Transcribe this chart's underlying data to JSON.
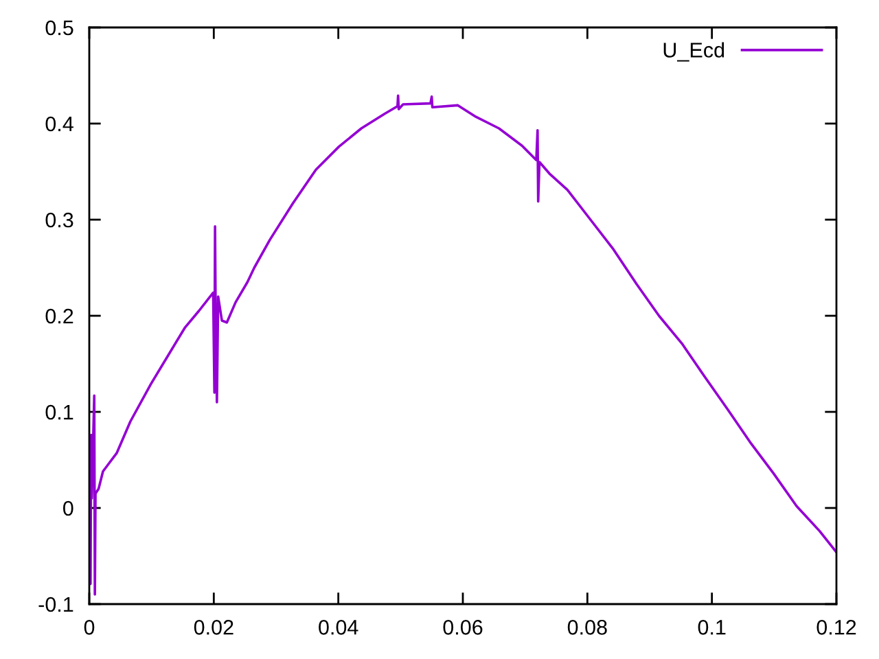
{
  "chart_data": {
    "type": "line",
    "xlim": [
      0,
      0.12
    ],
    "ylim": [
      -0.1,
      0.5
    ],
    "xticks": [
      0,
      0.02,
      0.04,
      0.06,
      0.08,
      0.1,
      0.12
    ],
    "yticks": [
      -0.1,
      0,
      0.1,
      0.2,
      0.3,
      0.4,
      0.5
    ],
    "legend": "top right",
    "grid": false,
    "series": [
      {
        "name": "U_Ecd",
        "color": "#9400d3",
        "x": [
          0.0,
          0.0002,
          0.0003,
          0.0004,
          0.0008,
          0.0009,
          0.001,
          0.0015,
          0.0022,
          0.003,
          0.0044,
          0.0066,
          0.0099,
          0.0125,
          0.0154,
          0.0176,
          0.0199,
          0.0201,
          0.0202,
          0.0203,
          0.0205,
          0.0207,
          0.0213,
          0.0221,
          0.0235,
          0.0254,
          0.0265,
          0.029,
          0.0327,
          0.0364,
          0.0401,
          0.0437,
          0.0474,
          0.0495,
          0.0496,
          0.0497,
          0.0504,
          0.0548,
          0.055,
          0.0551,
          0.0592,
          0.0621,
          0.0658,
          0.0695,
          0.0718,
          0.072,
          0.0721,
          0.0723,
          0.0739,
          0.0768,
          0.0805,
          0.0842,
          0.0879,
          0.0915,
          0.0952,
          0.0989,
          0.1026,
          0.1063,
          0.1099,
          0.1136,
          0.1173,
          0.12
        ],
        "values": [
          0.0,
          -0.079,
          0.076,
          0.01,
          0.117,
          -0.09,
          0.015,
          0.02,
          0.038,
          0.045,
          0.057,
          0.09,
          0.129,
          0.157,
          0.188,
          0.205,
          0.224,
          0.12,
          0.293,
          0.2,
          0.11,
          0.22,
          0.195,
          0.193,
          0.214,
          0.235,
          0.25,
          0.279,
          0.317,
          0.352,
          0.376,
          0.395,
          0.41,
          0.418,
          0.429,
          0.415,
          0.42,
          0.421,
          0.428,
          0.417,
          0.419,
          0.407,
          0.395,
          0.377,
          0.362,
          0.393,
          0.319,
          0.36,
          0.348,
          0.331,
          0.3,
          0.269,
          0.233,
          0.2,
          0.171,
          0.136,
          0.102,
          0.067,
          0.036,
          0.002,
          -0.024,
          -0.046
        ]
      }
    ]
  }
}
